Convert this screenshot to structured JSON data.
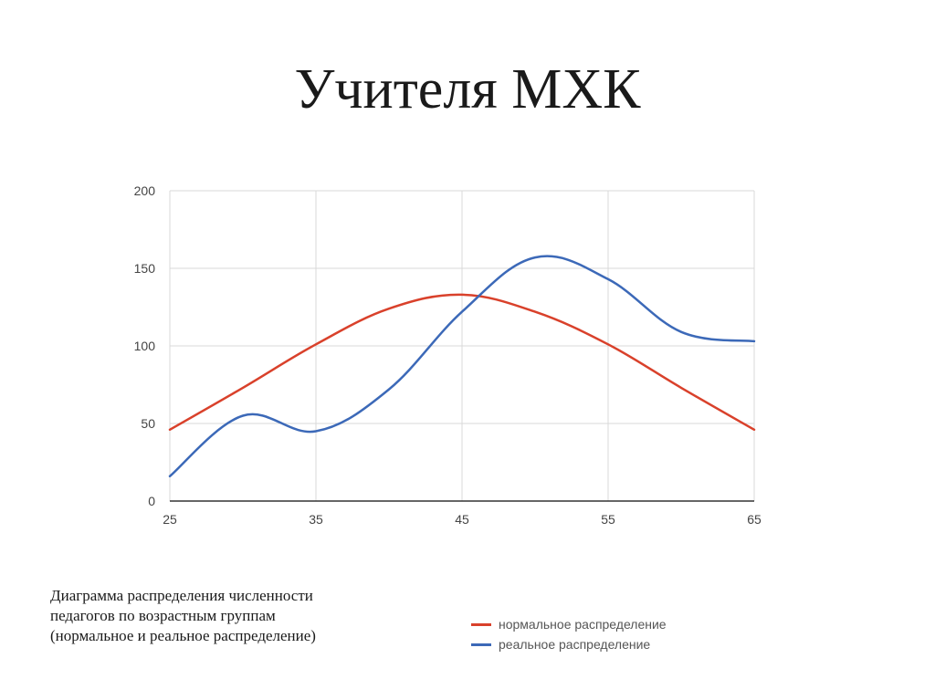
{
  "slide": {
    "title": "Учителя МХК",
    "caption_lines": [
      "Диаграмма распределения численности",
      "педагогов по возрастным группам",
      "(нормальное и реальное распределение)"
    ]
  },
  "colors": {
    "normal_series": "#d9412b",
    "real_series": "#3c69b8",
    "grid": "#d9d9d9",
    "axis": "#333333"
  },
  "chart_data": {
    "type": "line",
    "title": "",
    "xlabel": "",
    "ylabel": "",
    "xlim": [
      25,
      65
    ],
    "ylim": [
      0,
      200
    ],
    "x_ticks": [
      25,
      35,
      45,
      55,
      65
    ],
    "y_ticks": [
      0,
      50,
      100,
      150,
      200
    ],
    "grid": true,
    "legend_position": "bottom-right",
    "series": [
      {
        "name": "нормальное распределение",
        "x": [
          25,
          30,
          35,
          40,
          45,
          50,
          55,
          60,
          65
        ],
        "values": [
          46,
          73,
          101,
          124,
          133,
          122,
          101,
          73,
          46
        ]
      },
      {
        "name": "реальное распределение",
        "x": [
          25,
          30,
          35,
          40,
          45,
          50,
          55,
          60,
          65
        ],
        "values": [
          16,
          55,
          45,
          72,
          122,
          157,
          143,
          109,
          103
        ]
      }
    ]
  }
}
